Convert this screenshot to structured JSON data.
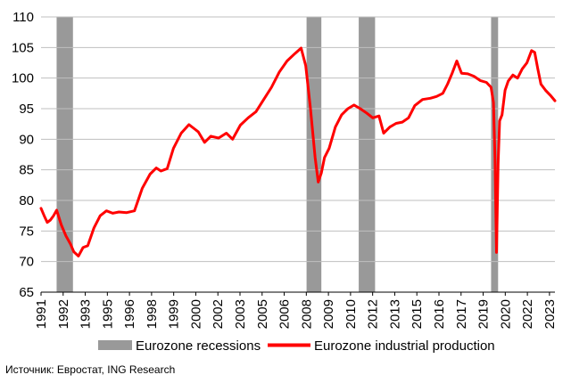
{
  "chart_data": {
    "type": "line",
    "title": "",
    "xlabel": "",
    "ylabel": "",
    "ylim": [
      65,
      110
    ],
    "y_ticks": [
      "65",
      "70",
      "75",
      "80",
      "85",
      "90",
      "95",
      "100",
      "105",
      "110"
    ],
    "xlim": [
      1991.0,
      2024.0
    ],
    "x_ticks": [
      "1991",
      "1992",
      "1993",
      "1995",
      "1996",
      "1998",
      "1999",
      "2000",
      "2002",
      "2003",
      "2005",
      "2006",
      "2008",
      "2009",
      "2010",
      "2012",
      "2013",
      "2015",
      "2016",
      "2017",
      "2019",
      "2020",
      "2022",
      "2023"
    ],
    "grid": "horizontal",
    "legend_position": "bottom",
    "series": [
      {
        "name": "Eurozone industrial production",
        "color": "#ff0000",
        "x": [
          1991.0,
          1991.2,
          1991.4,
          1991.6,
          1991.8,
          1992.0,
          1992.3,
          1992.6,
          1992.9,
          1993.1,
          1993.4,
          1993.7,
          1994.0,
          1994.4,
          1994.8,
          1995.2,
          1995.6,
          1996.0,
          1996.5,
          1997.0,
          1997.5,
          1998.0,
          1998.4,
          1998.7,
          1999.1,
          1999.5,
          2000.0,
          2000.5,
          2000.8,
          2001.1,
          2001.5,
          2001.9,
          2002.4,
          2002.9,
          2003.3,
          2003.8,
          2004.3,
          2004.8,
          2005.3,
          2005.8,
          2006.3,
          2006.8,
          2007.3,
          2007.7,
          2008.0,
          2008.3,
          2008.6,
          2008.8,
          2009.0,
          2009.2,
          2009.5,
          2009.9,
          2010.3,
          2010.7,
          2011.1,
          2011.5,
          2011.9,
          2012.3,
          2012.7,
          2013.0,
          2013.4,
          2013.8,
          2014.2,
          2014.6,
          2015.0,
          2015.5,
          2016.0,
          2016.4,
          2016.8,
          2017.1,
          2017.4,
          2017.7,
          2018.0,
          2018.4,
          2018.8,
          2019.2,
          2019.6,
          2019.9,
          2020.05,
          2020.15,
          2020.25,
          2020.35,
          2020.45,
          2020.6,
          2020.8,
          2021.0,
          2021.3,
          2021.6,
          2021.9,
          2022.2,
          2022.5,
          2022.7,
          2022.9,
          2023.1,
          2023.4,
          2023.7,
          2024.0
        ],
        "values": [
          78.7,
          77.5,
          76.4,
          76.8,
          77.5,
          78.4,
          76.0,
          74.2,
          72.8,
          71.6,
          70.9,
          72.3,
          72.6,
          75.5,
          77.5,
          78.3,
          77.9,
          78.1,
          78.0,
          78.3,
          82.0,
          84.3,
          85.3,
          84.8,
          85.2,
          88.5,
          91.0,
          92.4,
          91.8,
          91.2,
          89.5,
          90.5,
          90.2,
          91.0,
          90.0,
          92.3,
          93.5,
          94.5,
          96.5,
          98.5,
          101.0,
          102.8,
          104.0,
          104.9,
          102.0,
          95.0,
          87.0,
          83.0,
          84.5,
          87.0,
          88.5,
          92.0,
          94.0,
          95.0,
          95.6,
          95.0,
          94.3,
          93.5,
          93.8,
          91.0,
          92.0,
          92.6,
          92.8,
          93.5,
          95.5,
          96.5,
          96.7,
          97.0,
          97.5,
          99.0,
          100.8,
          102.8,
          100.8,
          100.7,
          100.3,
          99.6,
          99.3,
          98.5,
          96.0,
          87.0,
          71.5,
          86.0,
          93.0,
          94.0,
          98.0,
          99.5,
          100.5,
          100.0,
          101.5,
          102.5,
          104.5,
          104.2,
          101.5,
          99.0,
          98.0,
          97.2,
          96.3
        ]
      }
    ],
    "recessions": {
      "name": "Eurozone recessions",
      "color": "#999999",
      "periods": [
        [
          1992.0,
          1993.05
        ],
        [
          2008.05,
          2009.0
        ],
        [
          2011.4,
          2012.45
        ],
        [
          2019.9,
          2020.35
        ]
      ]
    }
  },
  "source_text": "Источник: Евростат, ING Research"
}
